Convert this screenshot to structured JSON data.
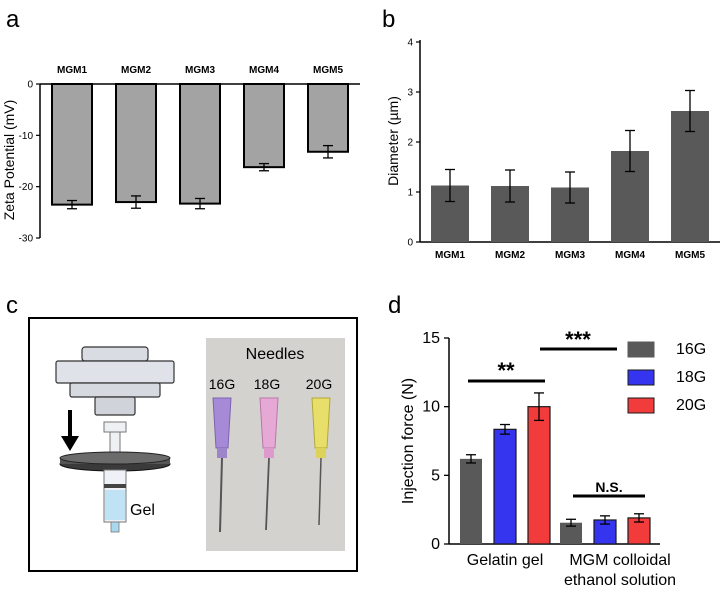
{
  "panel_labels": {
    "a": "a",
    "b": "b",
    "c": "c",
    "d": "d"
  },
  "colors": {
    "bar_gray": "#a3a3a3",
    "bar_dark": "#595959",
    "series_16G": "#595959",
    "series_18G": "#3535f0",
    "series_20G": "#f23c3c"
  },
  "illustration": {
    "needles_title": "Needles",
    "needle_labels": [
      "16G",
      "18G",
      "20G"
    ],
    "gel_label": "Gel"
  },
  "chart_data": [
    {
      "type": "bar",
      "title": "",
      "categories": [
        "MGM1",
        "MGM2",
        "MGM3",
        "MGM4",
        "MGM5"
      ],
      "values": [
        -23.5,
        -23,
        -23.3,
        -16.2,
        -13.2
      ],
      "errors": [
        0.8,
        1.2,
        1.0,
        0.7,
        1.2
      ],
      "xlabel": "",
      "ylabel": "Zeta Potential (mV)",
      "ylim": [
        -30,
        0
      ],
      "yticks": [
        "0",
        "-10",
        "-20",
        "-30"
      ],
      "category_axis_position": "top"
    },
    {
      "type": "bar",
      "title": "",
      "categories": [
        "MGM1",
        "MGM2",
        "MGM3",
        "MGM4",
        "MGM5"
      ],
      "values": [
        1.13,
        1.12,
        1.09,
        1.82,
        2.62
      ],
      "errors": [
        0.32,
        0.32,
        0.31,
        0.41,
        0.41
      ],
      "xlabel": "",
      "ylabel": "Diameter (µm)",
      "ylim": [
        0,
        4
      ],
      "yticks": [
        "0",
        "1",
        "2",
        "3",
        "4"
      ]
    },
    {
      "type": "bar",
      "title": "",
      "groups": [
        "Gelatin gel",
        "MGM colloidal ethanol solution"
      ],
      "group_label_lines": [
        [
          "Gelatin gel"
        ],
        [
          "MGM colloidal",
          "ethanol solution"
        ]
      ],
      "series": [
        {
          "name": "16G",
          "values": [
            6.2,
            1.55
          ],
          "errors": [
            0.3,
            0.25
          ]
        },
        {
          "name": "18G",
          "values": [
            8.35,
            1.75
          ],
          "errors": [
            0.35,
            0.3
          ]
        },
        {
          "name": "20G",
          "values": [
            10.0,
            1.9
          ],
          "errors": [
            1.0,
            0.3
          ]
        }
      ],
      "xlabel": "",
      "ylabel": "Injection force (N)",
      "ylim": [
        0,
        15
      ],
      "yticks": [
        "0",
        "5",
        "10",
        "15"
      ],
      "legend_position": "top-right",
      "annotations": [
        {
          "text": "**",
          "between": "Gelatin gel 16G and 20G"
        },
        {
          "text": "***",
          "between": "Gelatin gel and MGM colloidal ethanol solution"
        },
        {
          "text": "N.S.",
          "between": "MGM colloidal ethanol solution 16G and 20G"
        }
      ]
    }
  ]
}
